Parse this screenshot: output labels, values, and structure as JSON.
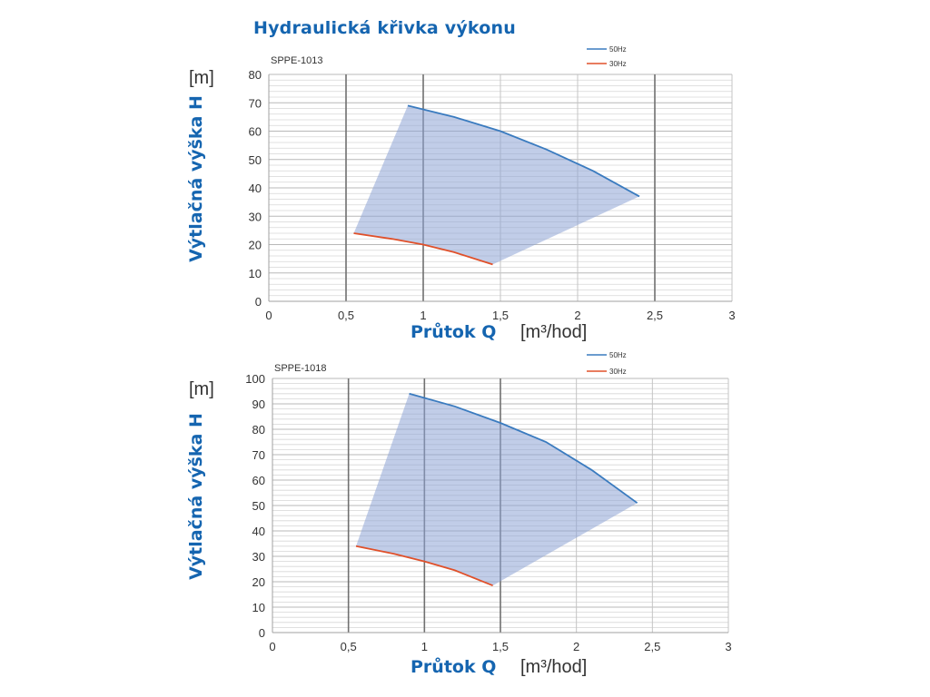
{
  "page": {
    "title": "Hydraulická křivka výkonu"
  },
  "colors": {
    "curve_50hz": "#3a7bbf",
    "curve_30hz": "#e0502a",
    "region_fill": "#8ea4d6",
    "title": "#1565b0"
  },
  "chart_data": [
    {
      "type": "line",
      "model": "SPPE-1013",
      "title": "",
      "xlabel": "Průtok Q",
      "xunit": "[m³/hod]",
      "ylabel": "Výtlačná výška H",
      "yunit": "[m]",
      "xlim": [
        0,
        3
      ],
      "ylim": [
        0,
        80
      ],
      "xticks": [
        "0",
        "0,5",
        "1",
        "1,5",
        "2",
        "2,5",
        "3"
      ],
      "yticks": [
        "0",
        "10",
        "20",
        "30",
        "40",
        "50",
        "60",
        "70",
        "80"
      ],
      "y_minor_step": 2,
      "x_major_lines": [
        0.5,
        1,
        2.5
      ],
      "grid": true,
      "legend": "top-right",
      "series": [
        {
          "name": "50Hz",
          "points": [
            [
              0.9,
              69
            ],
            [
              1.2,
              65
            ],
            [
              1.5,
              60
            ],
            [
              1.8,
              53.5
            ],
            [
              2.1,
              46
            ],
            [
              2.4,
              37
            ]
          ]
        },
        {
          "name": "30Hz",
          "points": [
            [
              0.55,
              24
            ],
            [
              0.8,
              22
            ],
            [
              1.0,
              20
            ],
            [
              1.2,
              17.3
            ],
            [
              1.45,
              13
            ]
          ]
        }
      ],
      "operating_region": true
    },
    {
      "type": "line",
      "model": "SPPE-1018",
      "title": "",
      "xlabel": "Průtok Q",
      "xunit": "[m³/hod]",
      "ylabel": "Výtlačná výška H",
      "yunit": "[m]",
      "xlim": [
        0,
        3
      ],
      "ylim": [
        0,
        100
      ],
      "xticks": [
        "0",
        "0,5",
        "1",
        "1,5",
        "2",
        "2,5",
        "3"
      ],
      "yticks": [
        "0",
        "10",
        "20",
        "30",
        "40",
        "50",
        "60",
        "70",
        "80",
        "90",
        "100"
      ],
      "y_minor_step": 2,
      "x_major_lines": [
        0.5,
        1,
        1.5
      ],
      "grid": true,
      "legend": "top-right",
      "series": [
        {
          "name": "50Hz",
          "points": [
            [
              0.9,
              94
            ],
            [
              1.2,
              89
            ],
            [
              1.5,
              82.5
            ],
            [
              1.8,
              75
            ],
            [
              2.1,
              64
            ],
            [
              2.4,
              51
            ]
          ]
        },
        {
          "name": "30Hz",
          "points": [
            [
              0.55,
              34
            ],
            [
              0.8,
              31
            ],
            [
              1.0,
              28
            ],
            [
              1.2,
              24.5
            ],
            [
              1.45,
              18.5
            ]
          ]
        }
      ],
      "operating_region": true
    }
  ]
}
